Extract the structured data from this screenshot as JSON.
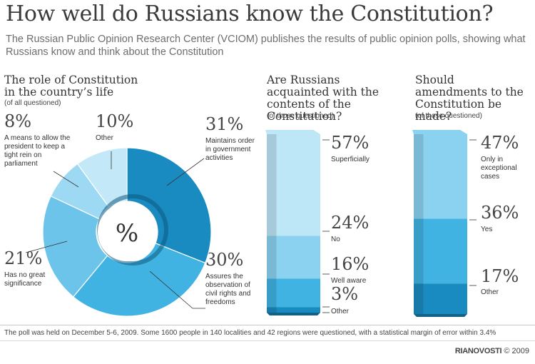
{
  "title": "How well do Russians know the Constitution?",
  "subtitle": "The Russian Public Opinion Research Center (VCIOM) publishes the results of public opinion polls, showing what Russians know and think about the Constitution",
  "colors": {
    "dark": "#1a8bc0",
    "mid": "#40b3e2",
    "light": "#8bd2f0",
    "pale": "#bde6f7",
    "center_dark": "#0d5a80"
  },
  "chart_data": [
    {
      "type": "pie",
      "title": "The role of Constitution in the country’s life",
      "note": "(of all questioned)",
      "center_label": "%",
      "slices": [
        {
          "pct_label": "31%",
          "value": 31,
          "label": "Maintains order in government activities",
          "color": "#1a8bc0"
        },
        {
          "pct_label": "30%",
          "value": 30,
          "label": "Assures the observation of civil rights and freedoms",
          "color": "#40b3e2"
        },
        {
          "pct_label": "21%",
          "value": 21,
          "label": "Has no great significance",
          "color": "#6cc4ea"
        },
        {
          "pct_label": "8%",
          "value": 8,
          "label": "A means to allow the president to keep a tight rein on parliament",
          "color": "#9dd9f3"
        },
        {
          "pct_label": "10%",
          "value": 10,
          "label": "Other",
          "color": "#c3e8f8"
        }
      ]
    },
    {
      "type": "bar",
      "stacked": true,
      "title": "Are Russians acquainted with the contents of the Constitution?",
      "note": "(of those questioned)",
      "segments": [
        {
          "pct_label": "3%",
          "value": 3,
          "label": "Other",
          "color": "#1a8bc0"
        },
        {
          "pct_label": "16%",
          "value": 16,
          "label": "Well aware",
          "color": "#40b3e2"
        },
        {
          "pct_label": "24%",
          "value": 24,
          "label": "No",
          "color": "#8bd2f0"
        },
        {
          "pct_label": "57%",
          "value": 57,
          "label": "Superficially",
          "color": "#bde6f7"
        }
      ]
    },
    {
      "type": "bar",
      "stacked": true,
      "title": "Should amendments to the Constitution be made?",
      "note": "(of those questioned)",
      "segments": [
        {
          "pct_label": "17%",
          "value": 17,
          "label": "Other",
          "color": "#1a8bc0"
        },
        {
          "pct_label": "36%",
          "value": 36,
          "label": "Yes",
          "color": "#40b3e2"
        },
        {
          "pct_label": "47%",
          "value": 47,
          "label": "Only in exceptional cases",
          "color": "#8bd2f0"
        }
      ]
    }
  ],
  "footer": "The poll was held on December 5-6, 2009. Some 1600 people in 140 localities and 42 regions were questioned, with a statistical margin of error within 3.4%",
  "credit": {
    "brand": "RIANOVOSTI",
    "year": "© 2009"
  }
}
